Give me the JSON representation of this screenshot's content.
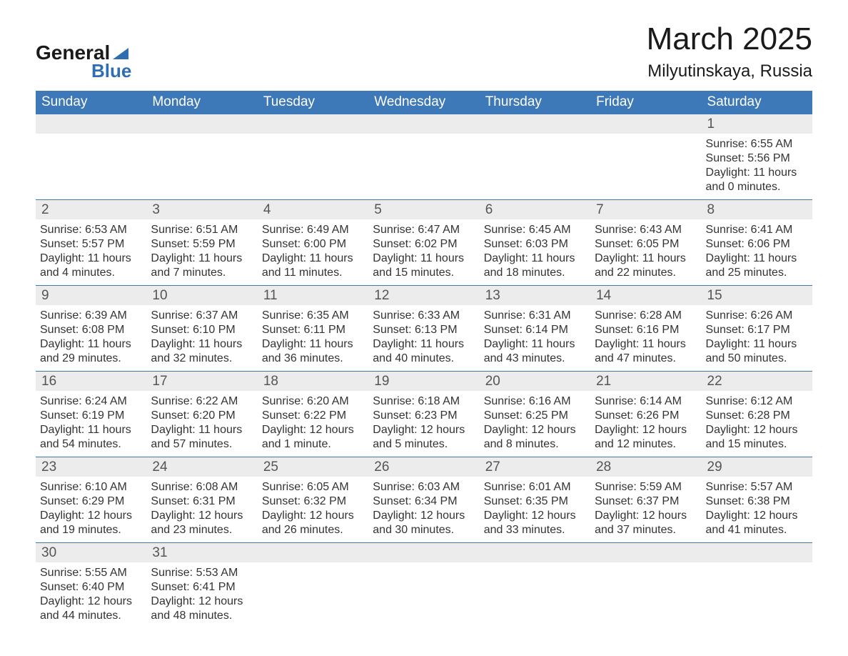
{
  "branding": {
    "logo_text_1": "General",
    "logo_text_2": "Blue",
    "logo_color_dark": "#1a1a1a",
    "logo_color_blue": "#2f6fb0"
  },
  "title": {
    "month_year": "March 2025",
    "location": "Milyutinskaya, Russia",
    "title_fontsize": 44,
    "location_fontsize": 24
  },
  "colors": {
    "header_bg": "#3d78b8",
    "header_text": "#ffffff",
    "daynum_bg": "#ececec",
    "daynum_text": "#555555",
    "body_text": "#333333",
    "row_separator": "#3d78b8",
    "page_bg": "#ffffff"
  },
  "typography": {
    "base_font": "Arial, Helvetica, sans-serif",
    "dow_fontsize": 19,
    "daynum_fontsize": 19,
    "body_fontsize": 16
  },
  "layout": {
    "columns": 7,
    "rows": 6
  },
  "dow": [
    "Sunday",
    "Monday",
    "Tuesday",
    "Wednesday",
    "Thursday",
    "Friday",
    "Saturday"
  ],
  "weeks": [
    [
      {
        "day": "",
        "sunrise": "",
        "sunset": "",
        "daylight1": "",
        "daylight2": ""
      },
      {
        "day": "",
        "sunrise": "",
        "sunset": "",
        "daylight1": "",
        "daylight2": ""
      },
      {
        "day": "",
        "sunrise": "",
        "sunset": "",
        "daylight1": "",
        "daylight2": ""
      },
      {
        "day": "",
        "sunrise": "",
        "sunset": "",
        "daylight1": "",
        "daylight2": ""
      },
      {
        "day": "",
        "sunrise": "",
        "sunset": "",
        "daylight1": "",
        "daylight2": ""
      },
      {
        "day": "",
        "sunrise": "",
        "sunset": "",
        "daylight1": "",
        "daylight2": ""
      },
      {
        "day": "1",
        "sunrise": "Sunrise: 6:55 AM",
        "sunset": "Sunset: 5:56 PM",
        "daylight1": "Daylight: 11 hours",
        "daylight2": "and 0 minutes."
      }
    ],
    [
      {
        "day": "2",
        "sunrise": "Sunrise: 6:53 AM",
        "sunset": "Sunset: 5:57 PM",
        "daylight1": "Daylight: 11 hours",
        "daylight2": "and 4 minutes."
      },
      {
        "day": "3",
        "sunrise": "Sunrise: 6:51 AM",
        "sunset": "Sunset: 5:59 PM",
        "daylight1": "Daylight: 11 hours",
        "daylight2": "and 7 minutes."
      },
      {
        "day": "4",
        "sunrise": "Sunrise: 6:49 AM",
        "sunset": "Sunset: 6:00 PM",
        "daylight1": "Daylight: 11 hours",
        "daylight2": "and 11 minutes."
      },
      {
        "day": "5",
        "sunrise": "Sunrise: 6:47 AM",
        "sunset": "Sunset: 6:02 PM",
        "daylight1": "Daylight: 11 hours",
        "daylight2": "and 15 minutes."
      },
      {
        "day": "6",
        "sunrise": "Sunrise: 6:45 AM",
        "sunset": "Sunset: 6:03 PM",
        "daylight1": "Daylight: 11 hours",
        "daylight2": "and 18 minutes."
      },
      {
        "day": "7",
        "sunrise": "Sunrise: 6:43 AM",
        "sunset": "Sunset: 6:05 PM",
        "daylight1": "Daylight: 11 hours",
        "daylight2": "and 22 minutes."
      },
      {
        "day": "8",
        "sunrise": "Sunrise: 6:41 AM",
        "sunset": "Sunset: 6:06 PM",
        "daylight1": "Daylight: 11 hours",
        "daylight2": "and 25 minutes."
      }
    ],
    [
      {
        "day": "9",
        "sunrise": "Sunrise: 6:39 AM",
        "sunset": "Sunset: 6:08 PM",
        "daylight1": "Daylight: 11 hours",
        "daylight2": "and 29 minutes."
      },
      {
        "day": "10",
        "sunrise": "Sunrise: 6:37 AM",
        "sunset": "Sunset: 6:10 PM",
        "daylight1": "Daylight: 11 hours",
        "daylight2": "and 32 minutes."
      },
      {
        "day": "11",
        "sunrise": "Sunrise: 6:35 AM",
        "sunset": "Sunset: 6:11 PM",
        "daylight1": "Daylight: 11 hours",
        "daylight2": "and 36 minutes."
      },
      {
        "day": "12",
        "sunrise": "Sunrise: 6:33 AM",
        "sunset": "Sunset: 6:13 PM",
        "daylight1": "Daylight: 11 hours",
        "daylight2": "and 40 minutes."
      },
      {
        "day": "13",
        "sunrise": "Sunrise: 6:31 AM",
        "sunset": "Sunset: 6:14 PM",
        "daylight1": "Daylight: 11 hours",
        "daylight2": "and 43 minutes."
      },
      {
        "day": "14",
        "sunrise": "Sunrise: 6:28 AM",
        "sunset": "Sunset: 6:16 PM",
        "daylight1": "Daylight: 11 hours",
        "daylight2": "and 47 minutes."
      },
      {
        "day": "15",
        "sunrise": "Sunrise: 6:26 AM",
        "sunset": "Sunset: 6:17 PM",
        "daylight1": "Daylight: 11 hours",
        "daylight2": "and 50 minutes."
      }
    ],
    [
      {
        "day": "16",
        "sunrise": "Sunrise: 6:24 AM",
        "sunset": "Sunset: 6:19 PM",
        "daylight1": "Daylight: 11 hours",
        "daylight2": "and 54 minutes."
      },
      {
        "day": "17",
        "sunrise": "Sunrise: 6:22 AM",
        "sunset": "Sunset: 6:20 PM",
        "daylight1": "Daylight: 11 hours",
        "daylight2": "and 57 minutes."
      },
      {
        "day": "18",
        "sunrise": "Sunrise: 6:20 AM",
        "sunset": "Sunset: 6:22 PM",
        "daylight1": "Daylight: 12 hours",
        "daylight2": "and 1 minute."
      },
      {
        "day": "19",
        "sunrise": "Sunrise: 6:18 AM",
        "sunset": "Sunset: 6:23 PM",
        "daylight1": "Daylight: 12 hours",
        "daylight2": "and 5 minutes."
      },
      {
        "day": "20",
        "sunrise": "Sunrise: 6:16 AM",
        "sunset": "Sunset: 6:25 PM",
        "daylight1": "Daylight: 12 hours",
        "daylight2": "and 8 minutes."
      },
      {
        "day": "21",
        "sunrise": "Sunrise: 6:14 AM",
        "sunset": "Sunset: 6:26 PM",
        "daylight1": "Daylight: 12 hours",
        "daylight2": "and 12 minutes."
      },
      {
        "day": "22",
        "sunrise": "Sunrise: 6:12 AM",
        "sunset": "Sunset: 6:28 PM",
        "daylight1": "Daylight: 12 hours",
        "daylight2": "and 15 minutes."
      }
    ],
    [
      {
        "day": "23",
        "sunrise": "Sunrise: 6:10 AM",
        "sunset": "Sunset: 6:29 PM",
        "daylight1": "Daylight: 12 hours",
        "daylight2": "and 19 minutes."
      },
      {
        "day": "24",
        "sunrise": "Sunrise: 6:08 AM",
        "sunset": "Sunset: 6:31 PM",
        "daylight1": "Daylight: 12 hours",
        "daylight2": "and 23 minutes."
      },
      {
        "day": "25",
        "sunrise": "Sunrise: 6:05 AM",
        "sunset": "Sunset: 6:32 PM",
        "daylight1": "Daylight: 12 hours",
        "daylight2": "and 26 minutes."
      },
      {
        "day": "26",
        "sunrise": "Sunrise: 6:03 AM",
        "sunset": "Sunset: 6:34 PM",
        "daylight1": "Daylight: 12 hours",
        "daylight2": "and 30 minutes."
      },
      {
        "day": "27",
        "sunrise": "Sunrise: 6:01 AM",
        "sunset": "Sunset: 6:35 PM",
        "daylight1": "Daylight: 12 hours",
        "daylight2": "and 33 minutes."
      },
      {
        "day": "28",
        "sunrise": "Sunrise: 5:59 AM",
        "sunset": "Sunset: 6:37 PM",
        "daylight1": "Daylight: 12 hours",
        "daylight2": "and 37 minutes."
      },
      {
        "day": "29",
        "sunrise": "Sunrise: 5:57 AM",
        "sunset": "Sunset: 6:38 PM",
        "daylight1": "Daylight: 12 hours",
        "daylight2": "and 41 minutes."
      }
    ],
    [
      {
        "day": "30",
        "sunrise": "Sunrise: 5:55 AM",
        "sunset": "Sunset: 6:40 PM",
        "daylight1": "Daylight: 12 hours",
        "daylight2": "and 44 minutes."
      },
      {
        "day": "31",
        "sunrise": "Sunrise: 5:53 AM",
        "sunset": "Sunset: 6:41 PM",
        "daylight1": "Daylight: 12 hours",
        "daylight2": "and 48 minutes."
      },
      {
        "day": "",
        "sunrise": "",
        "sunset": "",
        "daylight1": "",
        "daylight2": ""
      },
      {
        "day": "",
        "sunrise": "",
        "sunset": "",
        "daylight1": "",
        "daylight2": ""
      },
      {
        "day": "",
        "sunrise": "",
        "sunset": "",
        "daylight1": "",
        "daylight2": ""
      },
      {
        "day": "",
        "sunrise": "",
        "sunset": "",
        "daylight1": "",
        "daylight2": ""
      },
      {
        "day": "",
        "sunrise": "",
        "sunset": "",
        "daylight1": "",
        "daylight2": ""
      }
    ]
  ]
}
